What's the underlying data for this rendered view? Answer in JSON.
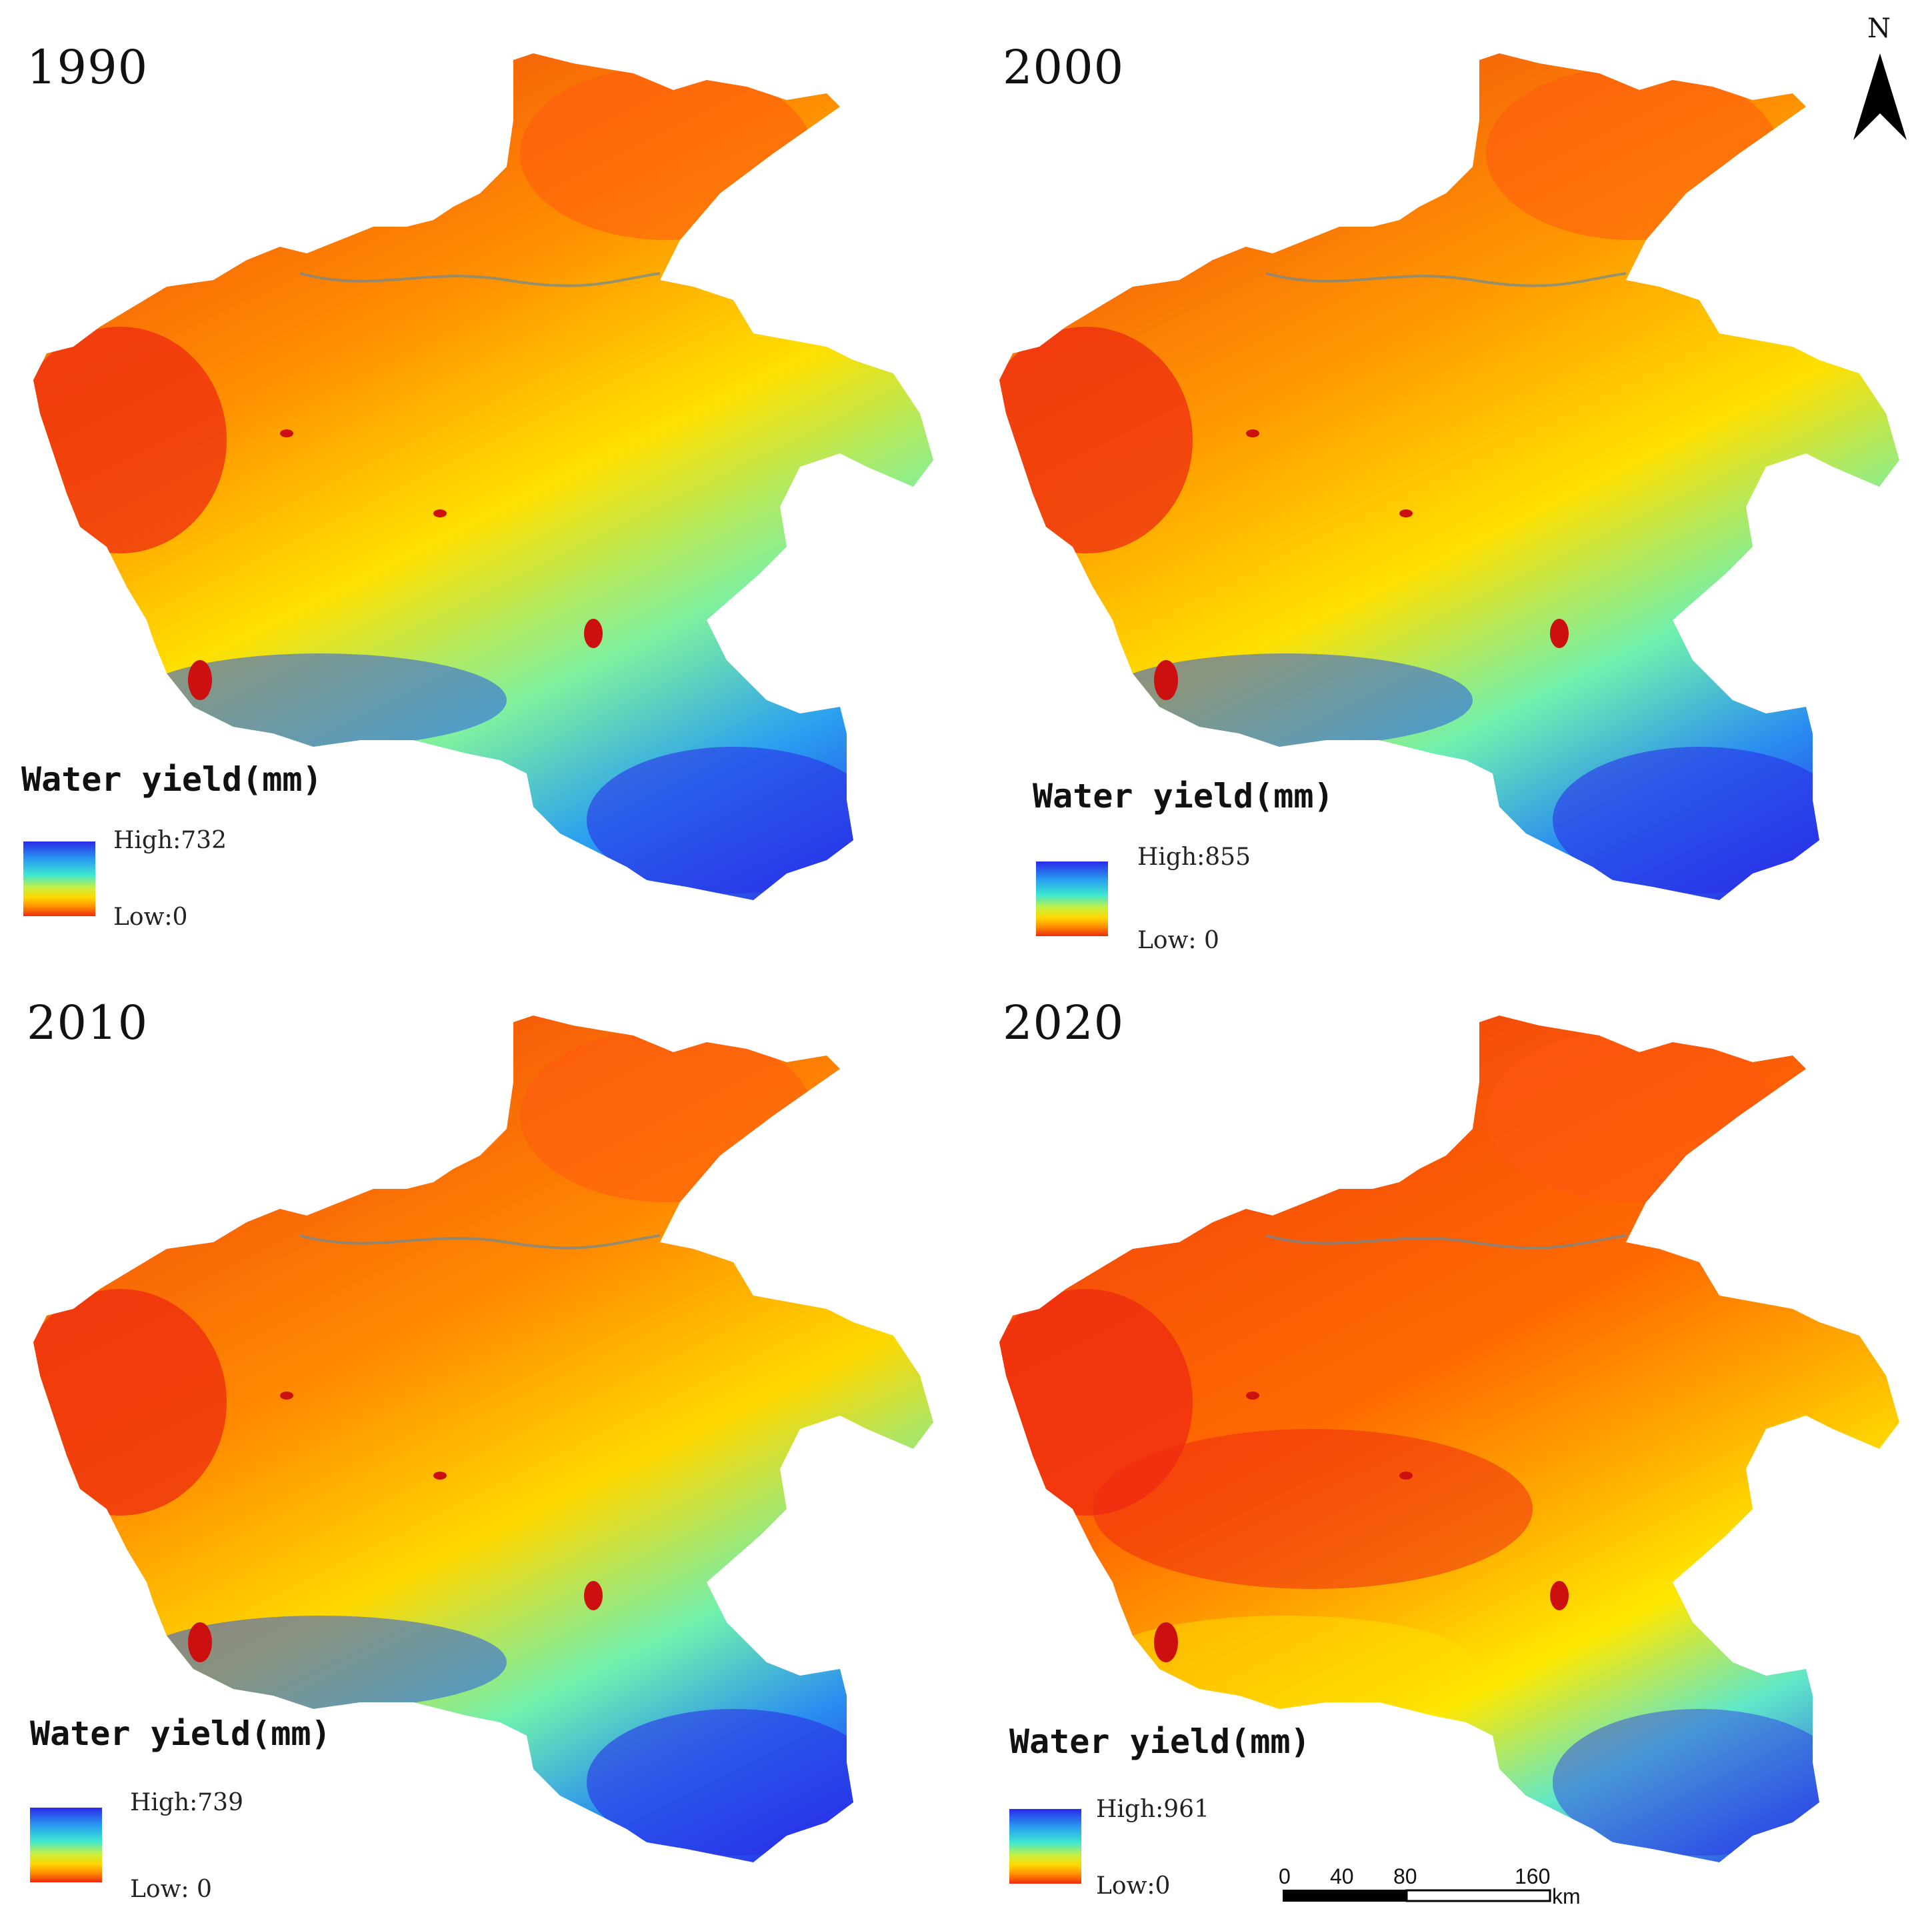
{
  "north_arrow": {
    "label": "N"
  },
  "panels": [
    {
      "year": "1990",
      "legend": {
        "title": "Water yield(mm)",
        "high": "High:732",
        "low": "Low:0"
      }
    },
    {
      "year": "2000",
      "legend": {
        "title": "Water yield(mm)",
        "high": "High:855",
        "low": "Low: 0"
      }
    },
    {
      "year": "2010",
      "legend": {
        "title": "Water yield(mm)",
        "high": "High:739",
        "low": "Low: 0"
      }
    },
    {
      "year": "2020",
      "legend": {
        "title": "Water yield(mm)",
        "high": "High:961",
        "low": "Low:0"
      }
    }
  ],
  "scale_bar": {
    "ticks": [
      "0",
      "40",
      "80",
      "160"
    ],
    "unit": "km"
  },
  "colors": {
    "high": "#2a2ae8",
    "mid": "#3ee8d0",
    "low": "#ee2a10"
  }
}
